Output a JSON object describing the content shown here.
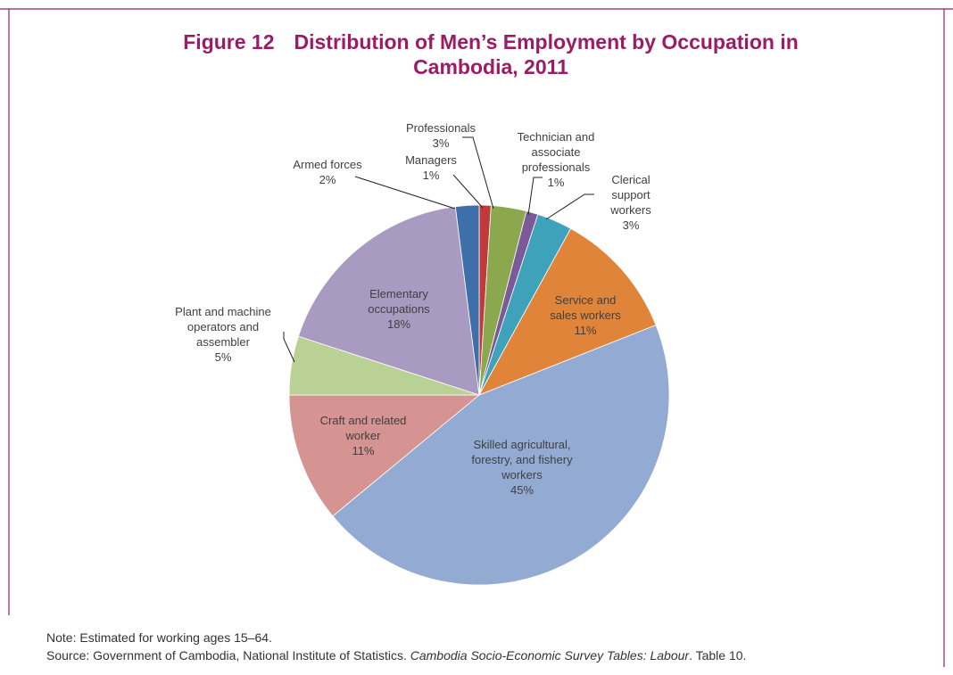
{
  "chart_data": {
    "type": "pie",
    "figure_label": "Figure 12",
    "title": "Distribution of Men’s Employment by Occupation in Cambodia, 2011",
    "categories": [
      "Managers",
      "Professionals",
      "Technician and associate professionals",
      "Clerical support workers",
      "Service and sales workers",
      "Skilled agricultural, forestry, and fishery workers",
      "Craft and related worker",
      "Plant and machine operators and assembler",
      "Elementary occupations",
      "Armed forces"
    ],
    "values": [
      1,
      3,
      1,
      3,
      11,
      45,
      11,
      5,
      18,
      2
    ],
    "value_labels": [
      "1%",
      "3%",
      "1%",
      "3%",
      "11%",
      "45%",
      "11%",
      "5%",
      "18%",
      "2%"
    ],
    "colors": [
      "#c0393b",
      "#8ca84e",
      "#7a5a98",
      "#3fa2bb",
      "#e0843a",
      "#93aad2",
      "#d59391",
      "#bad195",
      "#a99ac2",
      "#3f6faa"
    ],
    "note": "Note: Estimated for working ages 15–64.",
    "source": [
      "Source: Government of Cambodia, National Institute of Statistics. ",
      "Cambodia Socio-Economic Survey Tables: Labour",
      ". Table 10."
    ]
  }
}
